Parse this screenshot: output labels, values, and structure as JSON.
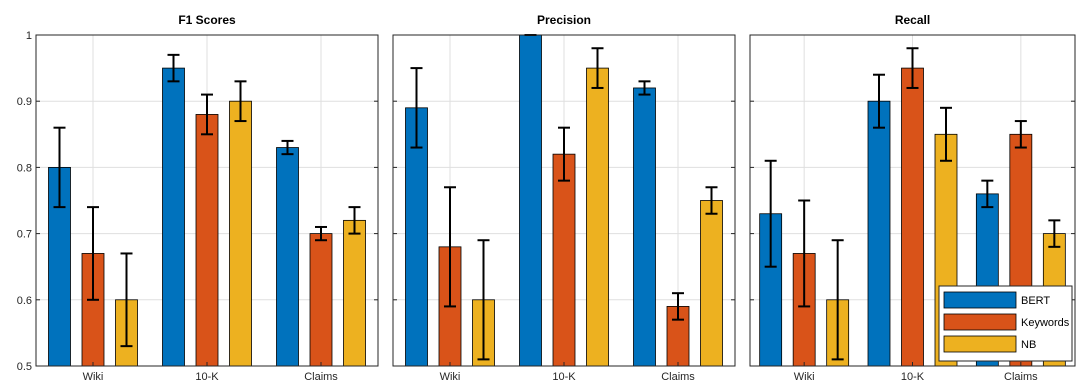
{
  "chart_data": [
    {
      "type": "bar",
      "title": "F1 Scores",
      "categories": [
        "Wiki",
        "10-K",
        "Claims"
      ],
      "ylim": [
        0.5,
        1.0
      ],
      "yticks": [
        0.5,
        0.6,
        0.7,
        0.8,
        0.9,
        1
      ],
      "ytick_labels": [
        "0.5",
        "0.6",
        "0.7",
        "0.8",
        "0.9",
        "1"
      ],
      "grid": true,
      "series": [
        {
          "name": "BERT",
          "values": [
            0.8,
            0.95,
            0.83
          ],
          "errors": [
            [
              0.74,
              0.86
            ],
            [
              0.93,
              0.97
            ],
            [
              0.82,
              0.84
            ]
          ]
        },
        {
          "name": "Keywords",
          "values": [
            0.67,
            0.88,
            0.7
          ],
          "errors": [
            [
              0.6,
              0.74
            ],
            [
              0.85,
              0.91
            ],
            [
              0.69,
              0.71
            ]
          ]
        },
        {
          "name": "NB",
          "values": [
            0.6,
            0.9,
            0.72
          ],
          "errors": [
            [
              0.53,
              0.67
            ],
            [
              0.87,
              0.93
            ],
            [
              0.7,
              0.74
            ]
          ]
        }
      ]
    },
    {
      "type": "bar",
      "title": "Precision",
      "categories": [
        "Wiki",
        "10-K",
        "Claims"
      ],
      "ylim": [
        0.5,
        1.0
      ],
      "grid": true,
      "series": [
        {
          "name": "BERT",
          "values": [
            0.89,
            1.0,
            0.92
          ],
          "errors": [
            [
              0.83,
              0.95
            ],
            [
              1.0,
              1.0
            ],
            [
              0.91,
              0.93
            ]
          ]
        },
        {
          "name": "Keywords",
          "values": [
            0.68,
            0.82,
            0.59
          ],
          "errors": [
            [
              0.59,
              0.77
            ],
            [
              0.78,
              0.86
            ],
            [
              0.57,
              0.61
            ]
          ]
        },
        {
          "name": "NB",
          "values": [
            0.6,
            0.95,
            0.75
          ],
          "errors": [
            [
              0.51,
              0.69
            ],
            [
              0.92,
              0.98
            ],
            [
              0.73,
              0.77
            ]
          ]
        }
      ]
    },
    {
      "type": "bar",
      "title": "Recall",
      "categories": [
        "Wiki",
        "10-K",
        "Claims"
      ],
      "ylim": [
        0.5,
        1.0
      ],
      "grid": true,
      "legend": "bottom-right",
      "series": [
        {
          "name": "BERT",
          "values": [
            0.73,
            0.9,
            0.76
          ],
          "errors": [
            [
              0.65,
              0.81
            ],
            [
              0.86,
              0.94
            ],
            [
              0.74,
              0.78
            ]
          ]
        },
        {
          "name": "Keywords",
          "values": [
            0.67,
            0.95,
            0.85
          ],
          "errors": [
            [
              0.59,
              0.75
            ],
            [
              0.92,
              0.98
            ],
            [
              0.83,
              0.87
            ]
          ]
        },
        {
          "name": "NB",
          "values": [
            0.6,
            0.85,
            0.7
          ],
          "errors": [
            [
              0.51,
              0.69
            ],
            [
              0.81,
              0.89
            ],
            [
              0.68,
              0.72
            ]
          ]
        }
      ]
    }
  ],
  "legend": {
    "entries": [
      "BERT",
      "Keywords",
      "NB"
    ]
  },
  "colors": {
    "BERT": "#0072BD",
    "Keywords": "#D95319",
    "NB": "#EDB120",
    "axis": "#262626",
    "grid": "#DFDFDF"
  }
}
